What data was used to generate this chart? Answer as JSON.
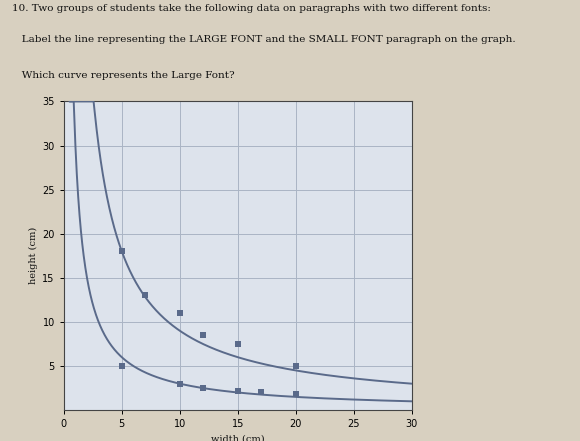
{
  "title_text": "10. Two groups of students take the following data on paragraphs with two different fonts:",
  "subtitle1": "   Label the line representing the LARGE FONT and the SMALL FONT paragraph on the graph.",
  "subtitle2": "   Which curve represents the Large Font?",
  "xlabel": "width (cm)",
  "ylabel": "height (cm)",
  "xlim": [
    0,
    30
  ],
  "ylim": [
    0,
    35
  ],
  "xticks": [
    0,
    5,
    10,
    15,
    20,
    25,
    30
  ],
  "yticks": [
    5,
    10,
    15,
    20,
    25,
    30,
    35
  ],
  "curve1_k": 90,
  "curve2_k": 30,
  "data_points_curve1_x": [
    5,
    7,
    10,
    12,
    15,
    20
  ],
  "data_points_curve1_y": [
    18,
    13,
    11,
    8.5,
    7.5,
    5
  ],
  "data_points_curve2_x": [
    5,
    10,
    12,
    15,
    17,
    20
  ],
  "data_points_curve2_y": [
    5,
    3,
    2.5,
    2.2,
    2.0,
    1.8
  ],
  "line_color": "#5a6a8a",
  "grid_color": "#aab4c4",
  "bg_color": "#dde3ec",
  "fig_bg": "#d8d0c0",
  "text_color": "#111111",
  "font_size_title": 7.5,
  "font_size_label": 7,
  "font_size_tick": 7
}
